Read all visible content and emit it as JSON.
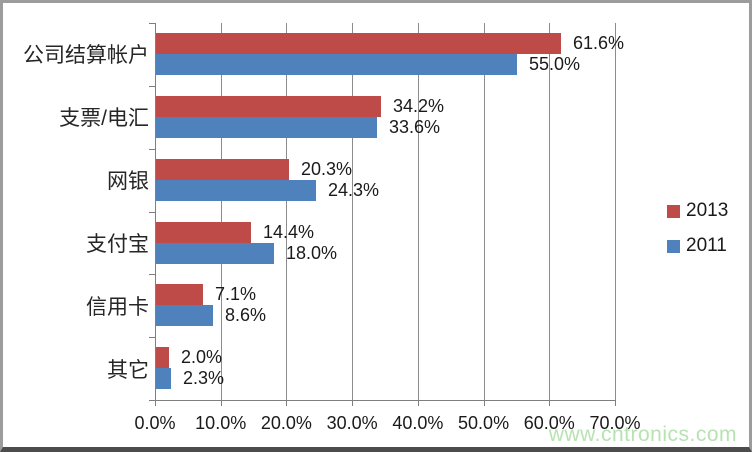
{
  "watermark": "www.cntronics.com",
  "colors": {
    "series_2013": "#BE4B48",
    "series_2011": "#4F81BD",
    "grid": "#8c8c8c",
    "axis": "#7f7f7f",
    "text": "#1a1a1a",
    "watermark": "#b7e3b2",
    "frame_border": "#9c9c9c",
    "frame_border_bottom": "#4c4c4c"
  },
  "chart_data": {
    "type": "bar",
    "orientation": "horizontal",
    "title": "",
    "categories": [
      "公司结算帐户",
      "支票/电汇",
      "网银",
      "支付宝",
      "信用卡",
      "其它"
    ],
    "series": [
      {
        "name": "2013",
        "color": "#BE4B48",
        "values": [
          61.6,
          34.2,
          20.3,
          14.4,
          7.1,
          2.0
        ],
        "data_labels": [
          "61.6%",
          "34.2%",
          "20.3%",
          "14.4%",
          "7.1%",
          "2.0%"
        ]
      },
      {
        "name": "2011",
        "color": "#4F81BD",
        "values": [
          55.0,
          33.6,
          24.3,
          18.0,
          8.6,
          2.3
        ],
        "data_labels": [
          "55.0%",
          "33.6%",
          "24.3%",
          "18.0%",
          "8.6%",
          "2.3%"
        ]
      }
    ],
    "x_ticks": [
      "0.0%",
      "10.0%",
      "20.0%",
      "30.0%",
      "40.0%",
      "50.0%",
      "60.0%",
      "70.0%"
    ],
    "xlim": [
      0,
      70
    ],
    "grid": true,
    "legend_position": "right",
    "legend": [
      "2013",
      "2011"
    ]
  }
}
